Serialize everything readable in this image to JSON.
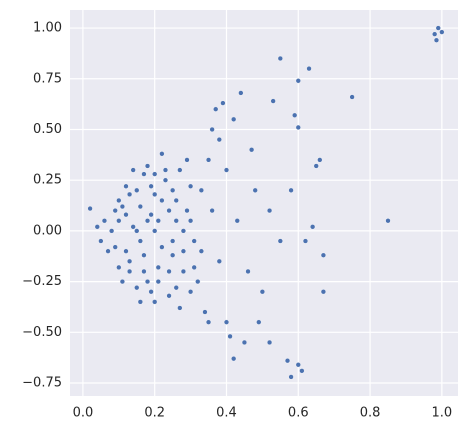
{
  "chart_data": {
    "type": "scatter",
    "color": "#4c72b0",
    "grid": true,
    "xlim": [
      -0.036,
      1.045
    ],
    "ylim": [
      -0.814,
      1.089
    ],
    "xticks": [
      {
        "value": 0.0,
        "label": "0.0"
      },
      0.2,
      0.4,
      0.6,
      0.8,
      {
        "value": 1.0,
        "label": "1.0"
      }
    ],
    "yticks": [
      {
        "value": -0.75,
        "label": "−0.75"
      },
      {
        "value": -0.5,
        "label": "−0.50"
      },
      {
        "value": -0.25,
        "label": "−0.25"
      },
      {
        "value": 0.0,
        "label": "0.00"
      },
      0.25,
      {
        "value": 0.5,
        "label": "0.50"
      },
      0.75,
      {
        "value": 1.0,
        "label": "1.00"
      }
    ],
    "x": [
      0.1,
      0.12,
      0.15,
      0.18,
      0.2,
      0.22,
      0.25,
      0.27,
      0.3,
      0.14,
      0.16,
      0.19,
      0.21,
      0.23,
      0.26,
      0.28,
      0.11,
      0.13,
      0.17,
      0.24,
      0.08,
      0.09,
      0.1,
      0.12,
      0.13,
      0.15,
      0.18,
      0.2,
      0.22,
      0.25,
      0.29,
      0.31,
      0.33,
      0.32,
      0.35,
      0.34,
      0.27,
      0.19,
      0.16,
      0.21,
      0.07,
      0.06,
      0.11,
      0.14,
      0.17,
      0.24,
      0.26,
      0.29,
      0.3,
      0.28,
      0.38,
      0.4,
      0.42,
      0.45,
      0.37,
      0.44,
      0.48,
      0.5,
      0.52,
      0.55,
      0.55,
      0.6,
      0.63,
      0.59,
      0.57,
      0.6,
      0.61,
      0.58,
      0.52,
      0.42,
      0.75,
      0.85,
      0.67,
      0.67,
      0.66,
      0.65,
      0.64,
      0.98,
      0.99,
      0.985,
      1.0,
      0.02,
      0.04,
      0.05,
      0.36,
      0.38,
      0.4,
      0.43,
      0.46,
      0.33,
      0.6,
      0.58,
      0.62,
      0.53,
      0.49,
      0.47,
      0.39,
      0.41,
      0.35,
      0.36,
      0.15,
      0.18,
      0.2,
      0.22,
      0.24,
      0.12,
      0.17,
      0.19,
      0.21,
      0.23,
      0.26,
      0.28,
      0.13,
      0.16,
      0.2,
      0.25,
      0.3,
      0.31,
      0.09,
      0.1
    ],
    "y": [
      0.05,
      -0.1,
      0.2,
      -0.25,
      0.0,
      0.15,
      -0.12,
      0.3,
      -0.3,
      0.02,
      -0.05,
      0.08,
      -0.18,
      0.25,
      0.05,
      -0.2,
      0.12,
      -0.2,
      0.28,
      -0.32,
      0.0,
      -0.08,
      0.15,
      0.22,
      -0.15,
      -0.28,
      0.32,
      -0.35,
      0.38,
      0.2,
      0.1,
      -0.05,
      0.2,
      -0.25,
      0.35,
      -0.4,
      -0.38,
      -0.3,
      0.12,
      0.05,
      -0.1,
      0.05,
      -0.25,
      0.3,
      -0.12,
      0.1,
      -0.28,
      0.35,
      0.22,
      -0.1,
      0.45,
      -0.45,
      0.55,
      -0.55,
      0.6,
      0.68,
      0.2,
      -0.3,
      0.1,
      -0.05,
      0.85,
      0.74,
      0.8,
      0.57,
      -0.64,
      -0.66,
      -0.69,
      -0.72,
      -0.55,
      -0.63,
      0.66,
      0.05,
      -0.3,
      -0.12,
      0.35,
      0.32,
      0.02,
      0.97,
      1.0,
      0.94,
      0.98,
      0.11,
      0.02,
      -0.05,
      0.1,
      -0.15,
      0.3,
      0.05,
      -0.2,
      -0.1,
      0.51,
      0.2,
      -0.05,
      0.64,
      -0.45,
      0.4,
      0.63,
      -0.52,
      -0.45,
      0.5,
      0.0,
      0.05,
      0.18,
      -0.08,
      -0.2,
      0.08,
      -0.2,
      0.22,
      -0.25,
      0.3,
      0.15,
      0.0,
      0.18,
      -0.35,
      0.28,
      -0.05,
      0.05,
      -0.18,
      0.1,
      -0.18
    ]
  }
}
